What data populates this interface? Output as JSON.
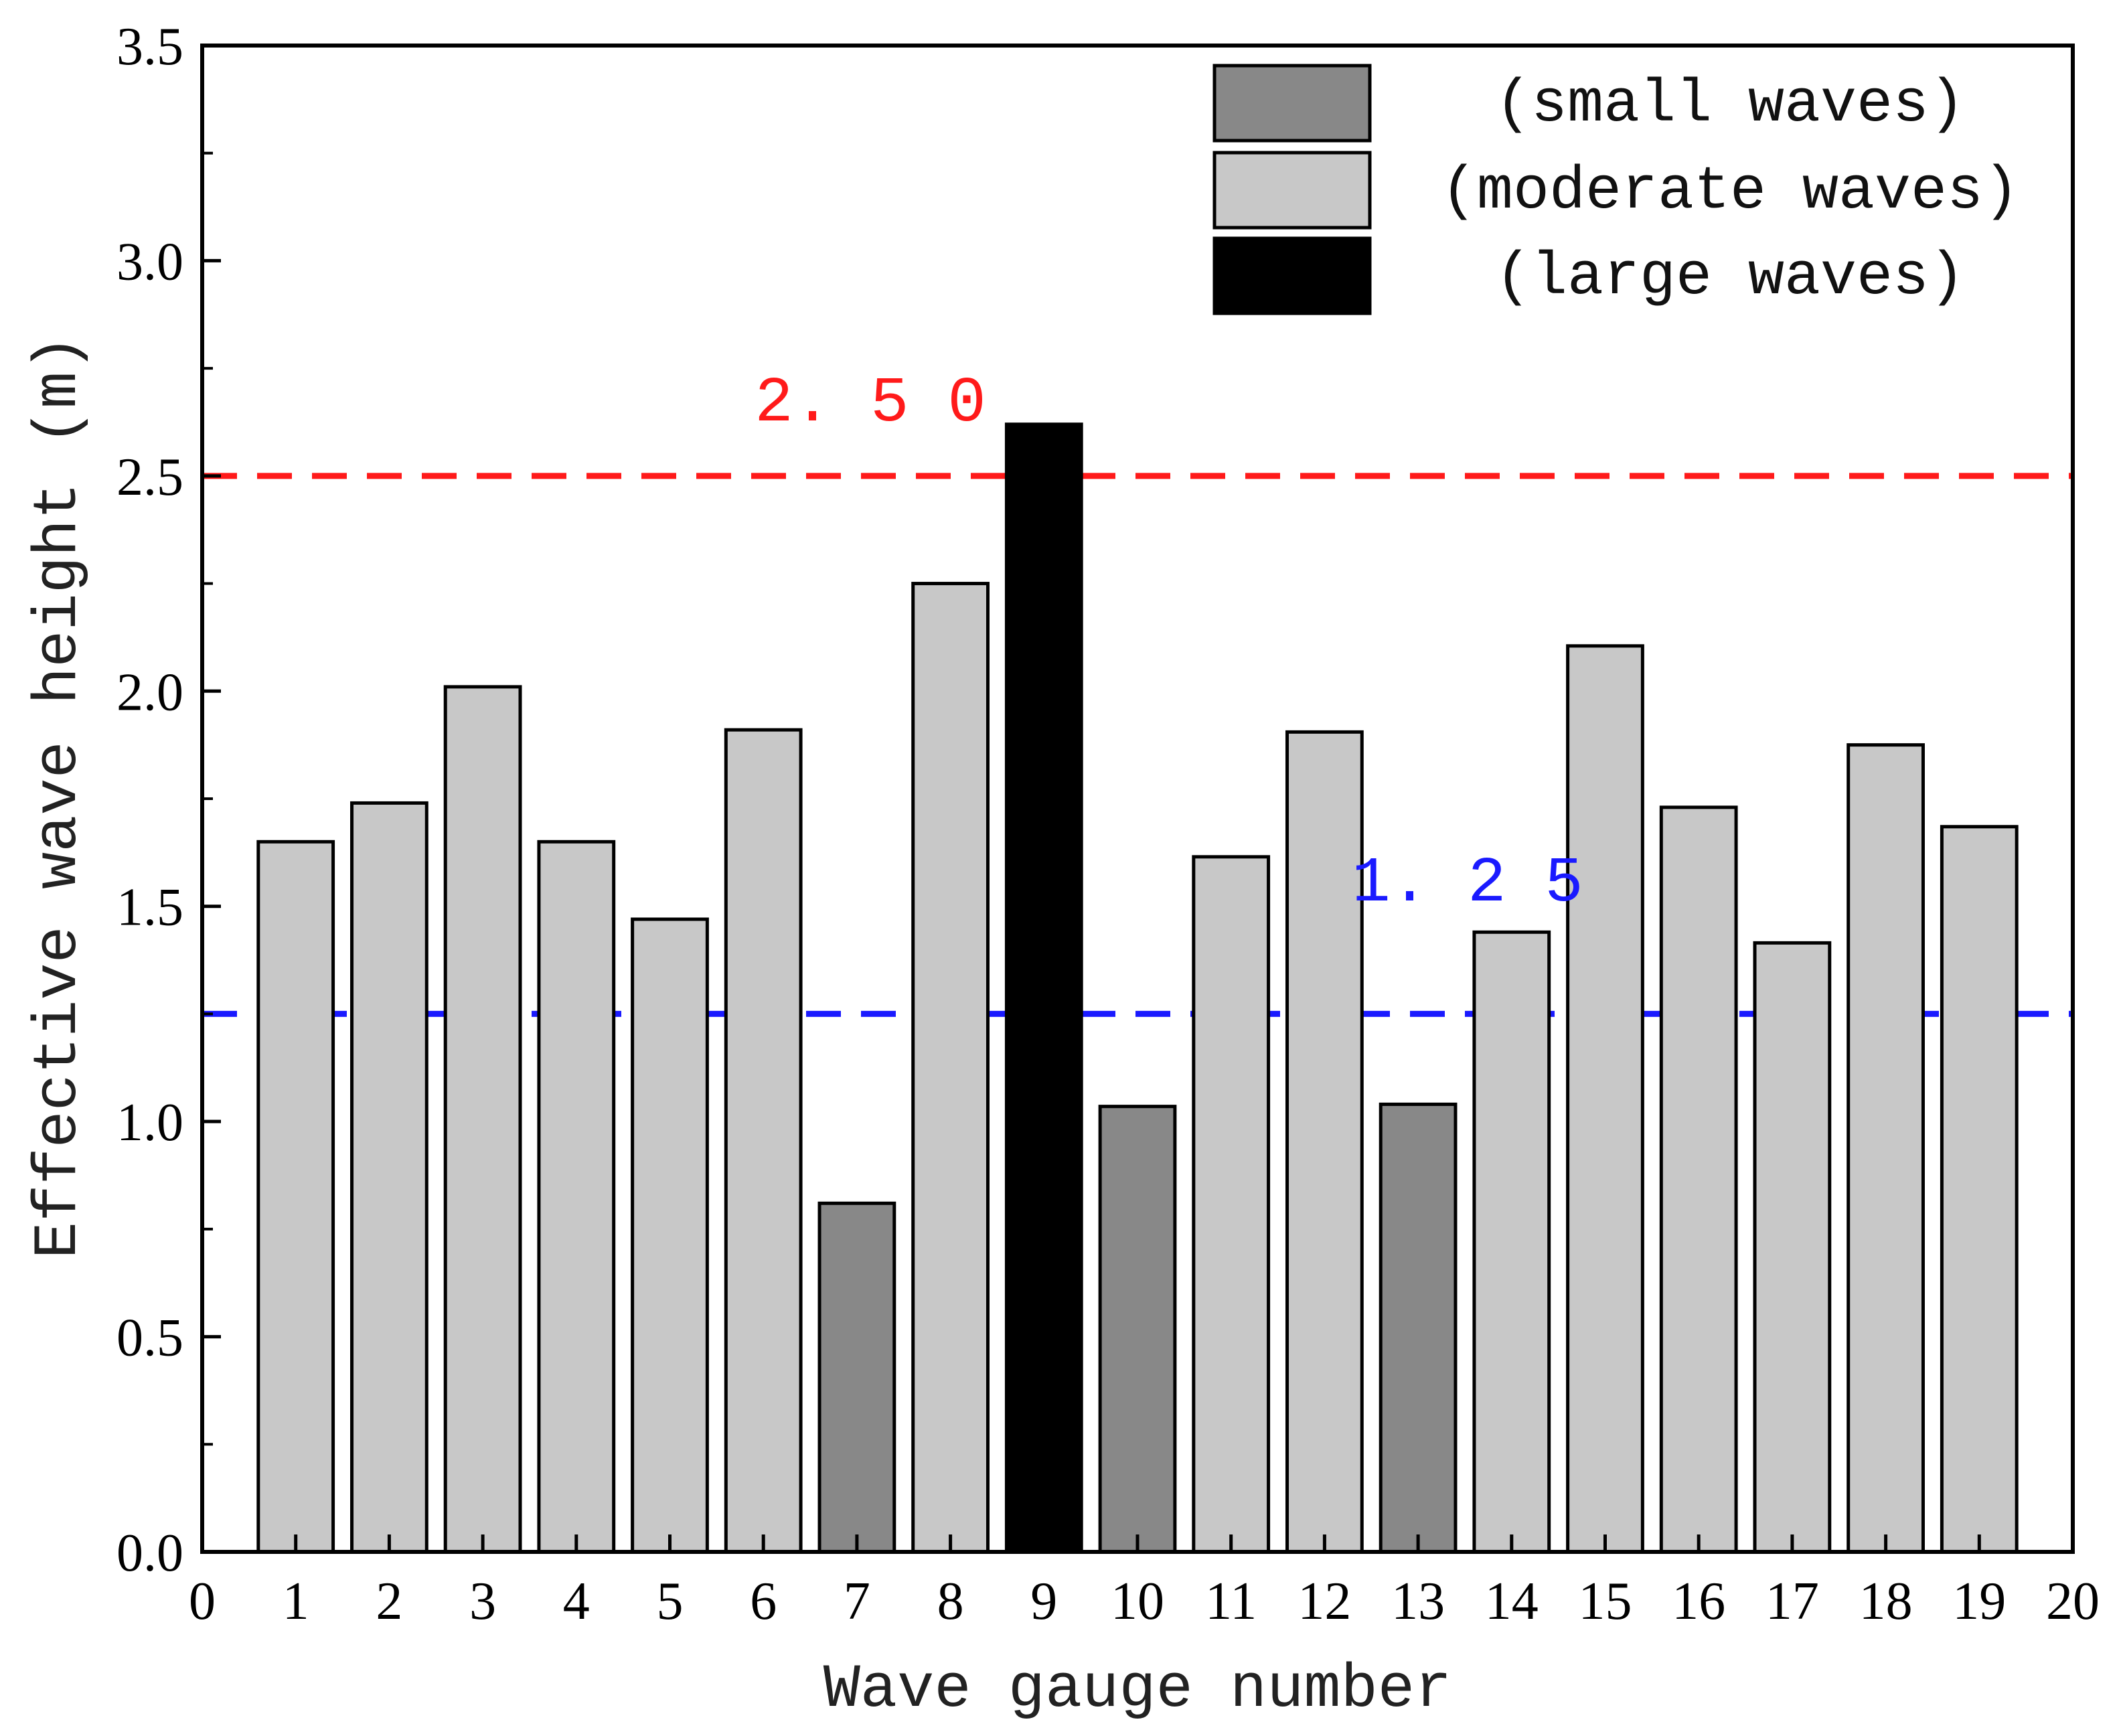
{
  "chart_data": {
    "type": "bar",
    "xlabel": "Wave gauge number",
    "ylabel": "Effective wave height (m)",
    "xlim": [
      0,
      20
    ],
    "ylim": [
      0,
      3.5
    ],
    "xticks": [
      "0",
      "1",
      "2",
      "3",
      "4",
      "5",
      "6",
      "7",
      "8",
      "9",
      "10",
      "11",
      "12",
      "13",
      "14",
      "15",
      "16",
      "17",
      "18",
      "19",
      "20"
    ],
    "yticks": [
      "0.0",
      "0.5",
      "1.0",
      "1.5",
      "2.0",
      "2.5",
      "3.0",
      "3.5"
    ],
    "bars": [
      {
        "x": 1,
        "value": 1.65,
        "class": "moderate"
      },
      {
        "x": 2,
        "value": 1.74,
        "class": "moderate"
      },
      {
        "x": 3,
        "value": 2.01,
        "class": "moderate"
      },
      {
        "x": 4,
        "value": 1.65,
        "class": "moderate"
      },
      {
        "x": 5,
        "value": 1.47,
        "class": "moderate"
      },
      {
        "x": 6,
        "value": 1.91,
        "class": "moderate"
      },
      {
        "x": 7,
        "value": 0.81,
        "class": "small"
      },
      {
        "x": 8,
        "value": 2.25,
        "class": "moderate"
      },
      {
        "x": 9,
        "value": 2.62,
        "class": "large"
      },
      {
        "x": 10,
        "value": 1.035,
        "class": "small"
      },
      {
        "x": 11,
        "value": 1.615,
        "class": "moderate"
      },
      {
        "x": 12,
        "value": 1.905,
        "class": "moderate"
      },
      {
        "x": 13,
        "value": 1.04,
        "class": "small"
      },
      {
        "x": 14,
        "value": 1.44,
        "class": "moderate"
      },
      {
        "x": 15,
        "value": 2.105,
        "class": "moderate"
      },
      {
        "x": 16,
        "value": 1.73,
        "class": "moderate"
      },
      {
        "x": 17,
        "value": 1.415,
        "class": "moderate"
      },
      {
        "x": 18,
        "value": 1.875,
        "class": "moderate"
      },
      {
        "x": 19,
        "value": 1.685,
        "class": "moderate"
      }
    ],
    "legend": [
      {
        "label": "(small waves)",
        "class": "small"
      },
      {
        "label": "(moderate waves)",
        "class": "moderate"
      },
      {
        "label": "(large waves)",
        "class": "large"
      }
    ],
    "legend_position": "top-right",
    "reference_lines": [
      {
        "value": 2.5,
        "label": "2.50",
        "color": "#ff1a1a"
      },
      {
        "value": 1.25,
        "label": "1.25",
        "color": "#1a1aff"
      }
    ],
    "colors": {
      "small": "#888888",
      "moderate": "#c8c8c8",
      "large": "#000000"
    }
  }
}
